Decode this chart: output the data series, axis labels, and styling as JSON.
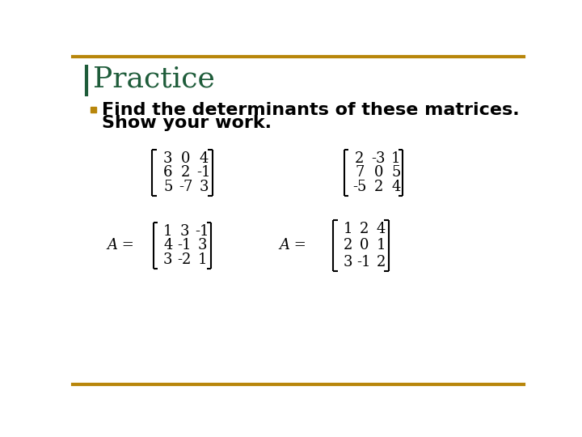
{
  "title": "Practice",
  "title_color": "#1E5C3A",
  "title_fontsize": 26,
  "bullet_color": "#B8860B",
  "bullet_text_line1": "Find the determinants of these matrices.",
  "bullet_text_line2": "Show your work.",
  "bullet_fontsize": 16,
  "matrix1": [
    [
      "3",
      "0",
      "4"
    ],
    [
      "6",
      "2",
      "-1"
    ],
    [
      "5",
      "-7",
      "3"
    ]
  ],
  "matrix2": [
    [
      "2",
      "-3",
      "1"
    ],
    [
      "7",
      "0",
      "5"
    ],
    [
      "-5",
      "2",
      "4"
    ]
  ],
  "matrix3_label": "A =",
  "matrix3": [
    [
      "1",
      "3",
      "-1"
    ],
    [
      "4",
      "-1",
      "3"
    ],
    [
      "3",
      "-2",
      "1"
    ]
  ],
  "matrix4_label": "A =",
  "matrix4": [
    [
      "1",
      "2",
      "4"
    ],
    [
      "2",
      "0",
      "1"
    ],
    [
      "3",
      "-1",
      "2"
    ]
  ],
  "border_color": "#B8860B",
  "bg_color": "#FFFFFF",
  "matrix_fontsize": 13
}
